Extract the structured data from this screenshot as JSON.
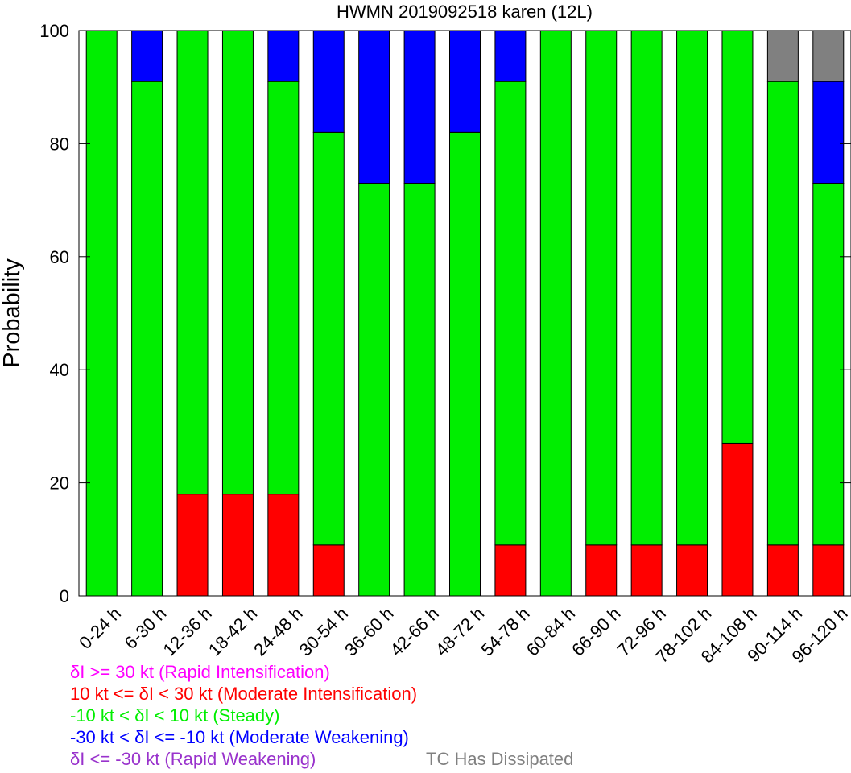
{
  "chart_data": {
    "type": "bar",
    "stacked": true,
    "title": "HWMN 2019092518 karen (12L)",
    "xlabel": "",
    "ylabel": "Probability",
    "ylim": [
      0,
      100
    ],
    "yticks": [
      0,
      20,
      40,
      60,
      80,
      100
    ],
    "grid": false,
    "categories": [
      "0-24 h",
      "6-30 h",
      "12-36 h",
      "18-42 h",
      "24-48 h",
      "30-54 h",
      "36-60 h",
      "42-66 h",
      "48-72 h",
      "54-78 h",
      "60-84 h",
      "66-90 h",
      "72-96 h",
      "78-102 h",
      "84-108 h",
      "90-114 h",
      "96-120 h"
    ],
    "series": [
      {
        "name": "δI >= 30 kt (Rapid Intensification)",
        "color": "#ff00ff",
        "values": [
          0,
          0,
          0,
          0,
          0,
          0,
          0,
          0,
          0,
          0,
          0,
          0,
          0,
          0,
          0,
          0,
          0
        ]
      },
      {
        "name": "10 kt <= δI < 30 kt (Moderate Intensification)",
        "color": "#ff0000",
        "values": [
          0,
          0,
          18,
          18,
          18,
          9,
          0,
          0,
          0,
          9,
          0,
          9,
          9,
          9,
          27,
          9,
          9
        ]
      },
      {
        "name": "-10 kt < δI < 10 kt (Steady)",
        "color": "#00ee00",
        "values": [
          100,
          91,
          82,
          82,
          73,
          73,
          73,
          73,
          82,
          82,
          100,
          91,
          91,
          91,
          73,
          82,
          64
        ]
      },
      {
        "name": "-30 kt < δI <= -10 kt (Moderate Weakening)",
        "color": "#0000ff",
        "values": [
          0,
          9,
          0,
          0,
          9,
          18,
          27,
          27,
          18,
          9,
          0,
          0,
          0,
          0,
          0,
          0,
          18
        ]
      },
      {
        "name": "δI <= -30 kt (Rapid Weakening)",
        "color": "#9932cc",
        "values": [
          0,
          0,
          0,
          0,
          0,
          0,
          0,
          0,
          0,
          0,
          0,
          0,
          0,
          0,
          0,
          0,
          0
        ]
      },
      {
        "name": "TC Has Dissipated",
        "color": "#808080",
        "values": [
          0,
          0,
          0,
          0,
          0,
          0,
          0,
          0,
          0,
          0,
          0,
          0,
          0,
          0,
          0,
          9,
          9
        ]
      }
    ]
  }
}
